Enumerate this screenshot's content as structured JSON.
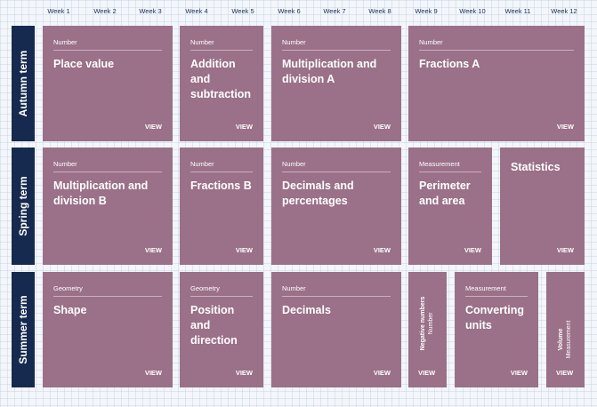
{
  "weeks": [
    "Week 1",
    "Week 2",
    "Week 3",
    "Week 4",
    "Week 5",
    "Week 6",
    "Week 7",
    "Week 8",
    "Week 9",
    "Week 10",
    "Week 11",
    "Week 12"
  ],
  "terms": [
    "Autumn term",
    "Spring term",
    "Summer term"
  ],
  "view_label": "VIEW",
  "autumn": [
    {
      "category": "Number",
      "title": "Place value"
    },
    {
      "category": "Number",
      "title": "Addition and subtraction"
    },
    {
      "category": "Number",
      "title": "Multiplication and division A"
    },
    {
      "category": "Number",
      "title": "Fractions A"
    }
  ],
  "spring": [
    {
      "category": "Number",
      "title": "Multiplication and division B"
    },
    {
      "category": "Number",
      "title": "Fractions B"
    },
    {
      "category": "Number",
      "title": "Decimals and percentages"
    },
    {
      "category": "Measurement",
      "title": "Perimeter and area"
    },
    {
      "category": "",
      "title": "Statistics"
    }
  ],
  "summer": [
    {
      "category": "Geometry",
      "title": "Shape"
    },
    {
      "category": "Geometry",
      "title": "Position and direction"
    },
    {
      "category": "Number",
      "title": "Decimals"
    },
    {
      "category": "Number",
      "title": "Negative numbers"
    },
    {
      "category": "Measurement",
      "title": "Converting units"
    },
    {
      "category": "Measurement",
      "title": "Volume"
    }
  ],
  "colors": {
    "card": "#9b7089",
    "term": "#16294f",
    "background": "#f3f6fa"
  }
}
